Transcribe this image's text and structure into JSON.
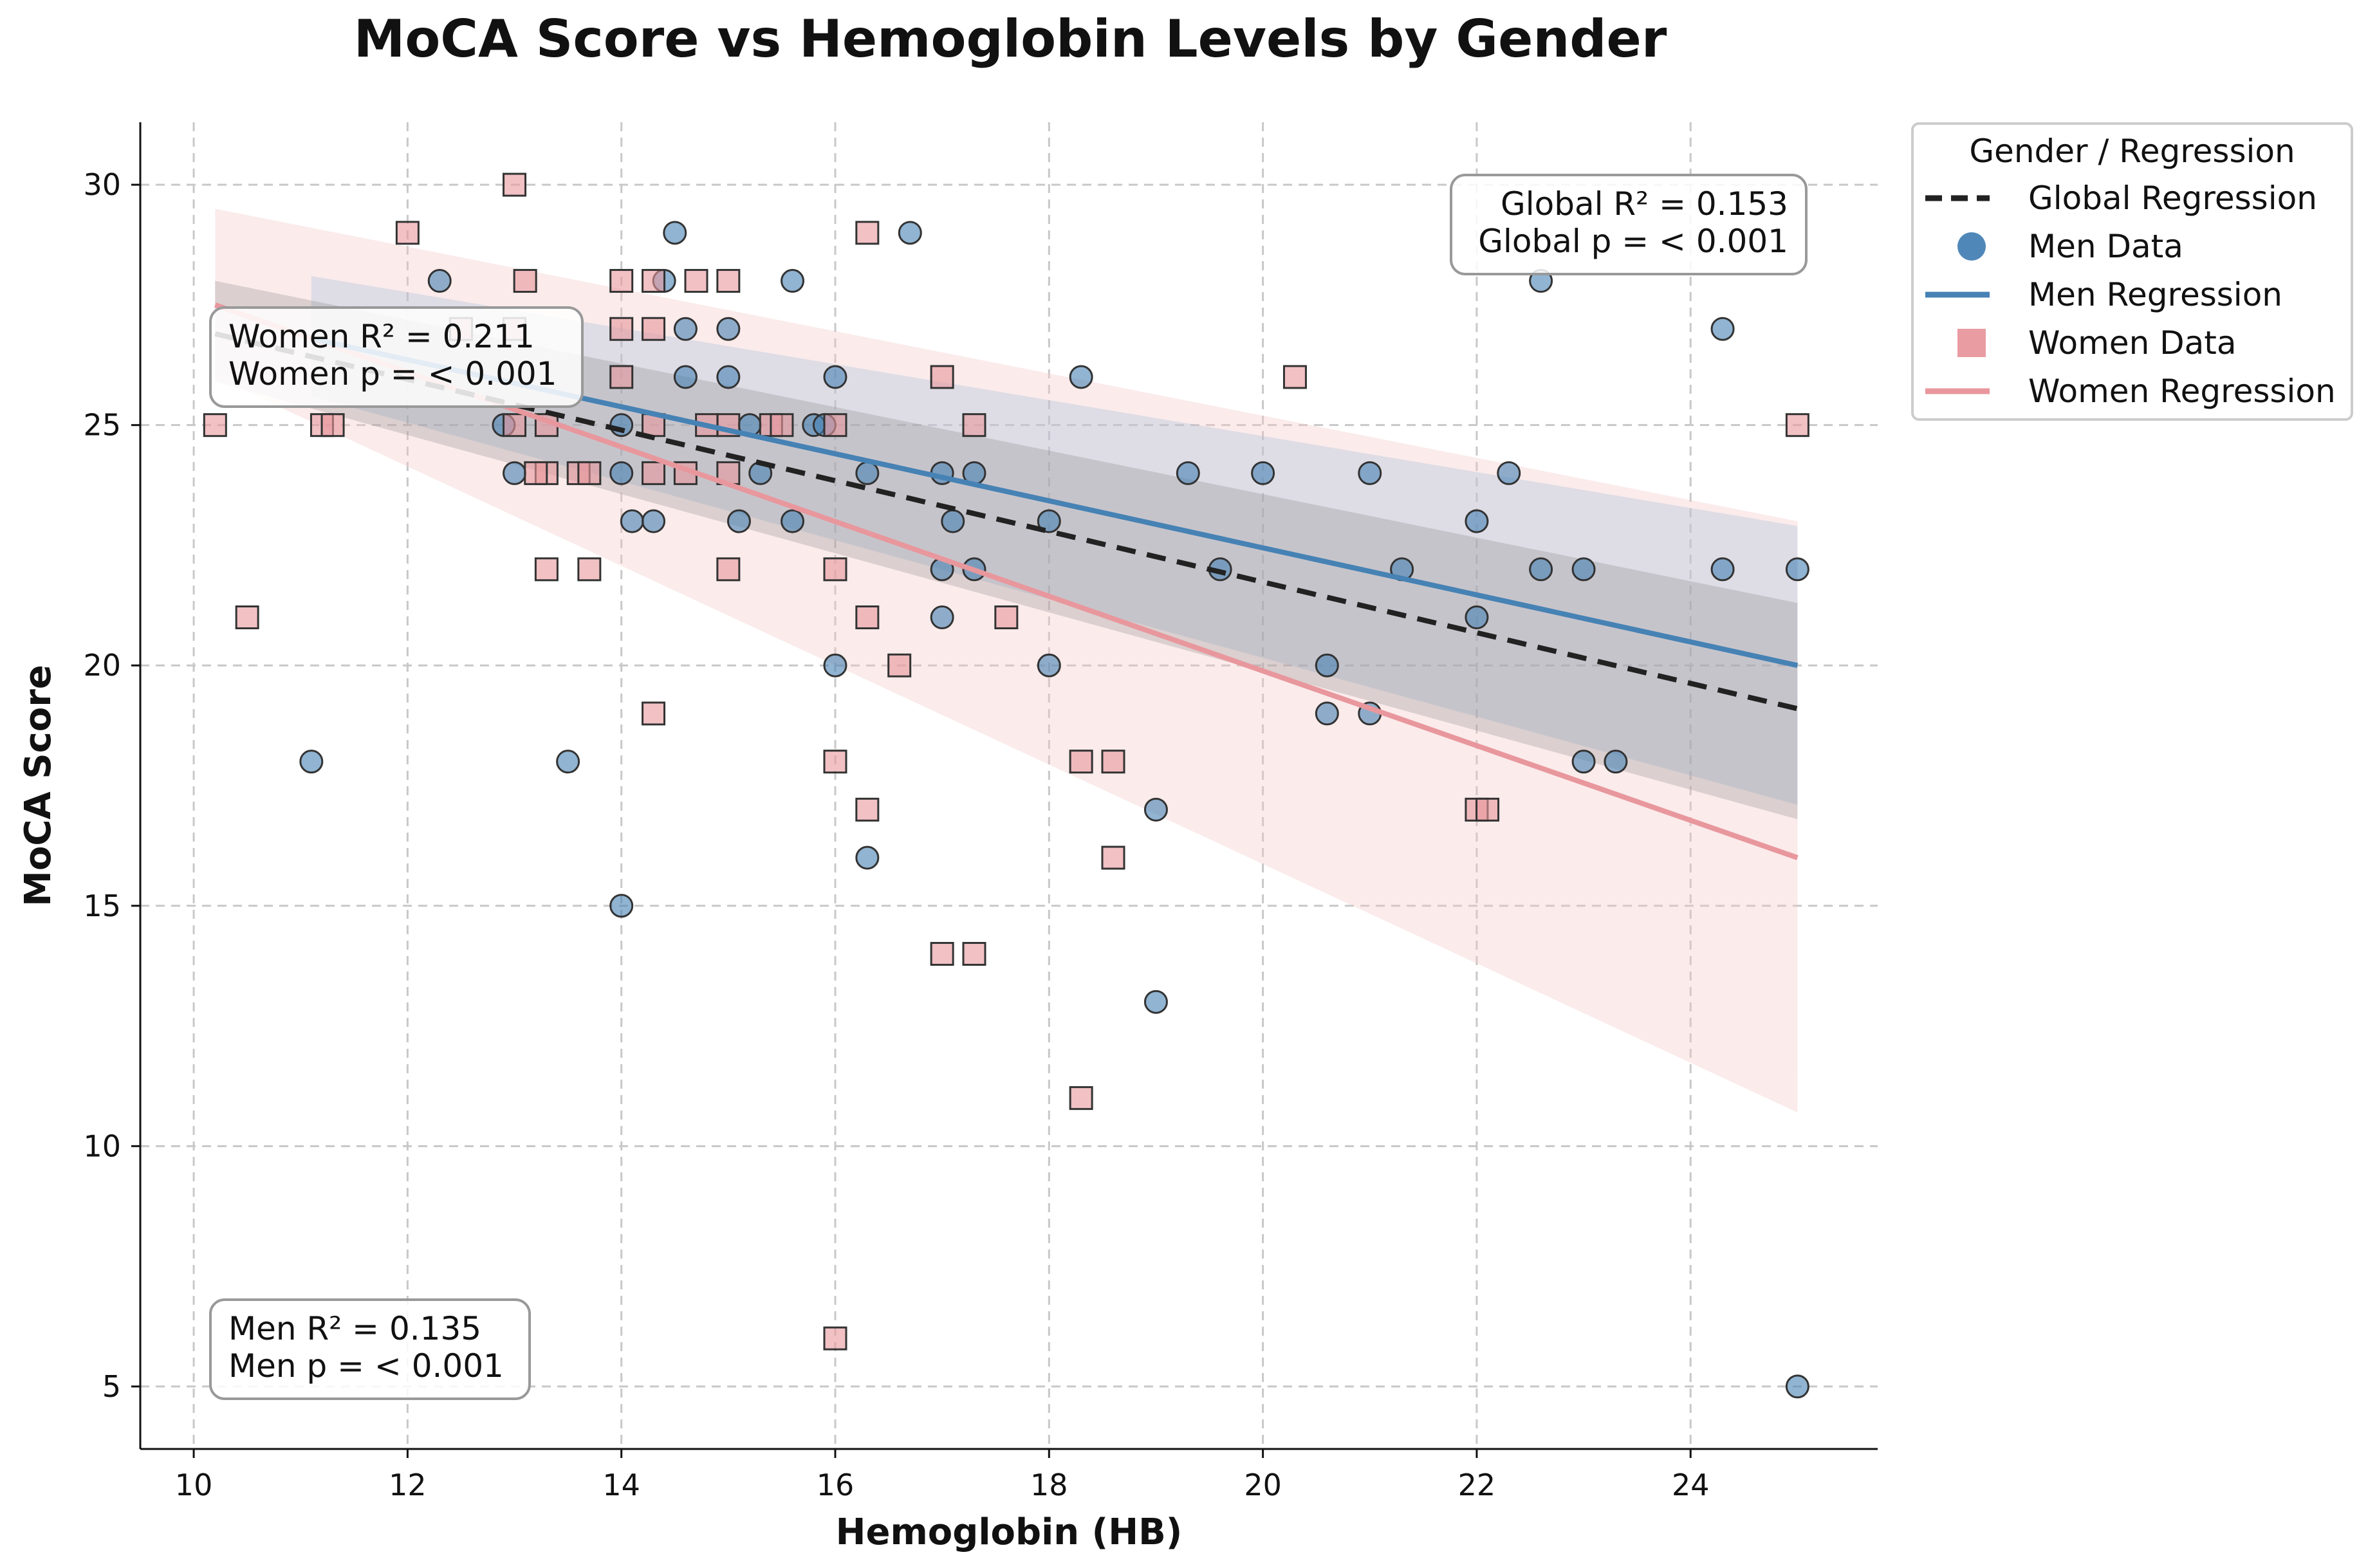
{
  "chart_data": {
    "type": "scatter",
    "title": "MoCA Score vs Hemoglobin Levels by Gender",
    "xlabel": "Hemoglobin (HB)",
    "ylabel": "MoCA Score",
    "xlim": [
      9.5,
      25.75
    ],
    "ylim": [
      3.7,
      31.3
    ],
    "x_ticks": [
      10,
      12,
      14,
      16,
      18,
      20,
      22,
      24
    ],
    "y_ticks": [
      5,
      10,
      15,
      20,
      25,
      30
    ],
    "grid": true,
    "legend": {
      "title": "Gender / Regression",
      "placement": "outside-top-right",
      "entries": [
        {
          "label": "Global Regression",
          "kind": "dashed-line",
          "color": "#222222"
        },
        {
          "label": "Men Data",
          "kind": "circle",
          "color": "#4682b4"
        },
        {
          "label": "Men Regression",
          "kind": "line",
          "color": "#4682b4"
        },
        {
          "label": "Women Data",
          "kind": "square",
          "color": "#e8979d"
        },
        {
          "label": "Women Regression",
          "kind": "line",
          "color": "#e8979d"
        }
      ]
    },
    "annotations": [
      {
        "id": "global",
        "lines": [
          "Global R² = 0.153",
          "Global p = < 0.001"
        ],
        "placement": "top-right",
        "align": "end"
      },
      {
        "id": "women",
        "lines": [
          "Women R² = 0.211",
          "Women p = < 0.001"
        ],
        "placement": "upper-left",
        "align": "start"
      },
      {
        "id": "men",
        "lines": [
          "Men R² = 0.135",
          "Men p = < 0.001"
        ],
        "placement": "lower-left",
        "align": "start"
      }
    ],
    "regressions": [
      {
        "name": "Women Regression",
        "color": "#e8979d",
        "width": 8,
        "dash": "",
        "x": [
          10.2,
          25.0
        ],
        "y": [
          27.5,
          16.0
        ],
        "band_upper": [
          29.5,
          23.0
        ],
        "band_lower": [
          26.0,
          10.7
        ],
        "band_color": "#f4c6c6",
        "band_opacity": 0.35
      },
      {
        "name": "Men Regression",
        "color": "#4682b4",
        "width": 8,
        "dash": "",
        "x": [
          11.1,
          25.0
        ],
        "y": [
          26.8,
          20.0
        ],
        "band_upper": [
          28.1,
          22.9
        ],
        "band_lower": [
          25.6,
          17.1
        ],
        "band_color": "#9bbad8",
        "band_opacity": 0.3
      },
      {
        "name": "Global Regression",
        "color": "#222222",
        "width": 8,
        "dash": "30,18",
        "x": [
          10.2,
          25.0
        ],
        "y": [
          26.9,
          19.1
        ],
        "band_upper": [
          28.0,
          21.3
        ],
        "band_lower": [
          25.9,
          16.8
        ],
        "band_color": "#8a8a8a",
        "band_opacity": 0.28
      }
    ],
    "series": [
      {
        "name": "Men Data",
        "marker": "circle",
        "color": "#4682b4",
        "points": [
          [
            12.3,
            28
          ],
          [
            14.4,
            28
          ],
          [
            14.5,
            29
          ],
          [
            14.6,
            27
          ],
          [
            14.6,
            26
          ],
          [
            15.0,
            27
          ],
          [
            15.0,
            26
          ],
          [
            15.6,
            28
          ],
          [
            16.0,
            26
          ],
          [
            16.7,
            29
          ],
          [
            18.3,
            26
          ],
          [
            12.9,
            25
          ],
          [
            13.0,
            24
          ],
          [
            14.0,
            25
          ],
          [
            14.0,
            24
          ],
          [
            14.1,
            23
          ],
          [
            14.3,
            23
          ],
          [
            15.1,
            23
          ],
          [
            15.2,
            25
          ],
          [
            15.3,
            24
          ],
          [
            15.8,
            25
          ],
          [
            15.9,
            25
          ],
          [
            16.3,
            24
          ],
          [
            17.0,
            24
          ],
          [
            17.0,
            22
          ],
          [
            17.1,
            23
          ],
          [
            17.3,
            24
          ],
          [
            18.0,
            23
          ],
          [
            11.1,
            18
          ],
          [
            13.5,
            18
          ],
          [
            14.0,
            15
          ],
          [
            15.6,
            23
          ],
          [
            16.0,
            20
          ],
          [
            16.3,
            16
          ],
          [
            17.0,
            21
          ],
          [
            17.3,
            22
          ],
          [
            18.0,
            20
          ],
          [
            19.0,
            17
          ],
          [
            19.0,
            13
          ],
          [
            19.3,
            24
          ],
          [
            19.6,
            22
          ],
          [
            20.0,
            24
          ],
          [
            20.6,
            20
          ],
          [
            20.6,
            19
          ],
          [
            21.0,
            24
          ],
          [
            21.0,
            19
          ],
          [
            21.3,
            22
          ],
          [
            22.0,
            23
          ],
          [
            22.0,
            21
          ],
          [
            22.3,
            24
          ],
          [
            22.6,
            28
          ],
          [
            22.6,
            22
          ],
          [
            23.0,
            22
          ],
          [
            23.0,
            18
          ],
          [
            23.3,
            18
          ],
          [
            24.3,
            27
          ],
          [
            24.3,
            22
          ],
          [
            25.0,
            22
          ],
          [
            25.0,
            5
          ]
        ]
      },
      {
        "name": "Women Data",
        "marker": "square",
        "color": "#e8979d",
        "points": [
          [
            13.0,
            30
          ],
          [
            12.0,
            29
          ],
          [
            16.3,
            29
          ],
          [
            13.1,
            28
          ],
          [
            14.0,
            28
          ],
          [
            14.3,
            28
          ],
          [
            14.7,
            28
          ],
          [
            15.0,
            28
          ],
          [
            12.5,
            27
          ],
          [
            13.0,
            27
          ],
          [
            14.0,
            27
          ],
          [
            14.3,
            27
          ],
          [
            14.0,
            26
          ],
          [
            17.0,
            26
          ],
          [
            20.3,
            26
          ],
          [
            10.2,
            25
          ],
          [
            11.2,
            25
          ],
          [
            11.3,
            25
          ],
          [
            13.0,
            25
          ],
          [
            13.3,
            25
          ],
          [
            14.3,
            25
          ],
          [
            14.8,
            25
          ],
          [
            15.0,
            25
          ],
          [
            15.4,
            25
          ],
          [
            15.5,
            25
          ],
          [
            16.0,
            25
          ],
          [
            17.3,
            25
          ],
          [
            25.0,
            25
          ],
          [
            13.3,
            24
          ],
          [
            13.2,
            24
          ],
          [
            13.6,
            24
          ],
          [
            13.7,
            24
          ],
          [
            14.3,
            24
          ],
          [
            14.6,
            24
          ],
          [
            15.0,
            24
          ],
          [
            13.3,
            22
          ],
          [
            13.7,
            22
          ],
          [
            15.0,
            22
          ],
          [
            16.0,
            22
          ],
          [
            10.5,
            21
          ],
          [
            16.3,
            21
          ],
          [
            17.6,
            21
          ],
          [
            16.6,
            20
          ],
          [
            14.3,
            19
          ],
          [
            16.0,
            18
          ],
          [
            18.3,
            18
          ],
          [
            18.6,
            18
          ],
          [
            16.3,
            17
          ],
          [
            22.0,
            17
          ],
          [
            22.1,
            17
          ],
          [
            18.6,
            16
          ],
          [
            17.0,
            14
          ],
          [
            17.3,
            14
          ],
          [
            18.3,
            11
          ],
          [
            16.0,
            6
          ]
        ]
      }
    ]
  }
}
